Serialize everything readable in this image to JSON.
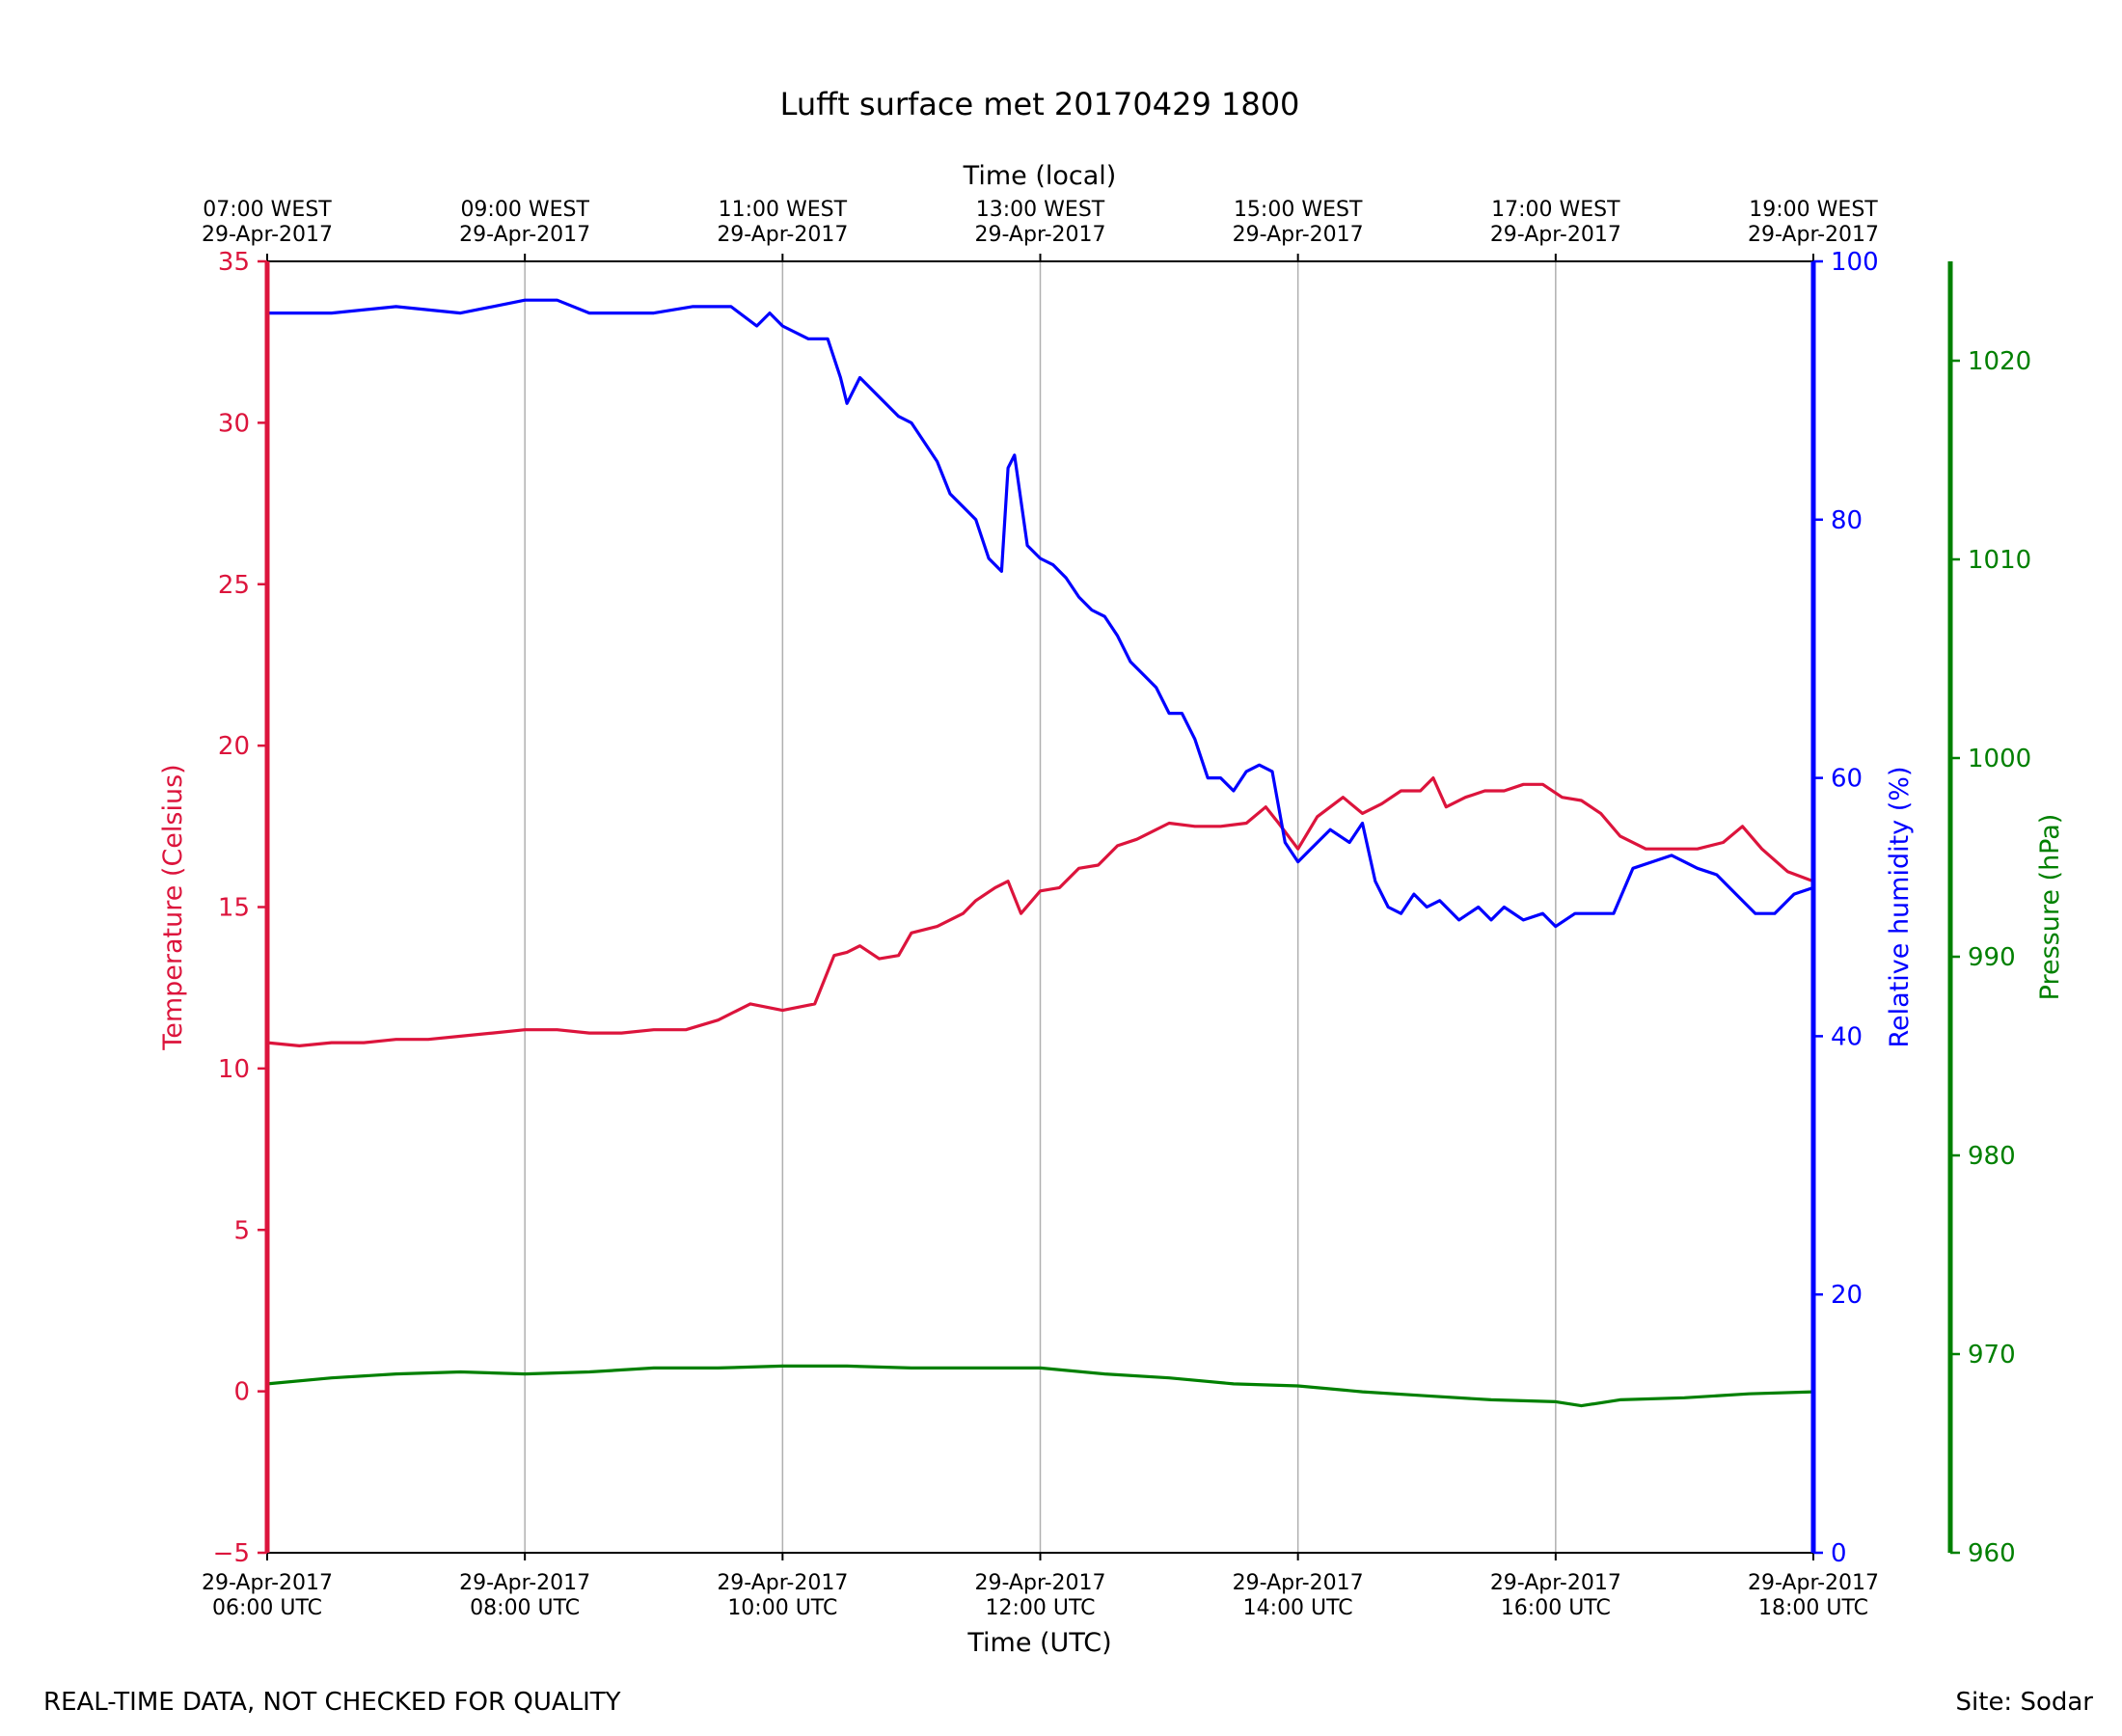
{
  "footer": {
    "disclaimer": "REAL-TIME DATA, NOT CHECKED FOR QUALITY",
    "site": "Site: Sodar"
  },
  "chart_data": {
    "type": "line",
    "title": "Lufft surface met 20170429 1800",
    "xlabel": "Time (UTC)",
    "x2label": "Time (local)",
    "xlim": [
      6,
      18
    ],
    "xticks": [
      6,
      8,
      10,
      12,
      14,
      16,
      18
    ],
    "xtick_labels": [
      [
        "29-Apr-2017",
        "06:00 UTC"
      ],
      [
        "29-Apr-2017",
        "08:00 UTC"
      ],
      [
        "29-Apr-2017",
        "10:00 UTC"
      ],
      [
        "29-Apr-2017",
        "12:00 UTC"
      ],
      [
        "29-Apr-2017",
        "14:00 UTC"
      ],
      [
        "29-Apr-2017",
        "16:00 UTC"
      ],
      [
        "29-Apr-2017",
        "18:00 UTC"
      ]
    ],
    "x2tick_labels": [
      [
        "07:00 WEST",
        "29-Apr-2017"
      ],
      [
        "09:00 WEST",
        "29-Apr-2017"
      ],
      [
        "11:00 WEST",
        "29-Apr-2017"
      ],
      [
        "13:00 WEST",
        "29-Apr-2017"
      ],
      [
        "15:00 WEST",
        "29-Apr-2017"
      ],
      [
        "17:00 WEST",
        "29-Apr-2017"
      ],
      [
        "19:00 WEST",
        "29-Apr-2017"
      ]
    ],
    "grid": "x",
    "axes": [
      {
        "id": "temp",
        "label": "Temperature (Celsius)",
        "ylim": [
          -5,
          35
        ],
        "ticks": [
          -5,
          0,
          5,
          10,
          15,
          20,
          25,
          30,
          35
        ],
        "tick_labels": [
          "−5",
          "0",
          "5",
          "10",
          "15",
          "20",
          "25",
          "30",
          "35"
        ],
        "color": "#dc143c",
        "side": "left"
      },
      {
        "id": "rh",
        "label": "Relative humidity (%)",
        "ylim": [
          0,
          100
        ],
        "ticks": [
          0,
          20,
          40,
          60,
          80,
          100
        ],
        "tick_labels": [
          "0",
          "20",
          "40",
          "60",
          "80",
          "100"
        ],
        "color": "#0000ff",
        "side": "right"
      },
      {
        "id": "pres",
        "label": "Pressure (hPa)",
        "ylim": [
          960,
          1025
        ],
        "ticks": [
          960,
          970,
          980,
          990,
          1000,
          1010,
          1020
        ],
        "tick_labels": [
          "960",
          "970",
          "980",
          "990",
          "1000",
          "1010",
          "1020"
        ],
        "color": "#008000",
        "side": "right-outer"
      }
    ],
    "series": [
      {
        "axis": "temp",
        "color": "#dc143c",
        "x": [
          6.0,
          6.25,
          6.5,
          6.75,
          7.0,
          7.25,
          7.5,
          7.75,
          8.0,
          8.25,
          8.5,
          8.75,
          9.0,
          9.25,
          9.5,
          9.75,
          10.0,
          10.25,
          10.4,
          10.5,
          10.6,
          10.75,
          10.9,
          11.0,
          11.2,
          11.4,
          11.5,
          11.65,
          11.75,
          11.85,
          12.0,
          12.15,
          12.3,
          12.45,
          12.6,
          12.75,
          12.9,
          13.0,
          13.2,
          13.4,
          13.6,
          13.75,
          13.85,
          14.0,
          14.15,
          14.35,
          14.5,
          14.65,
          14.8,
          14.95,
          15.05,
          15.15,
          15.3,
          15.45,
          15.6,
          15.75,
          15.9,
          16.05,
          16.2,
          16.35,
          16.5,
          16.7,
          16.9,
          17.1,
          17.3,
          17.45,
          17.6,
          17.8,
          18.0
        ],
        "y": [
          10.8,
          10.7,
          10.8,
          10.8,
          10.9,
          10.9,
          11.0,
          11.1,
          11.2,
          11.2,
          11.1,
          11.1,
          11.2,
          11.2,
          11.5,
          12.0,
          11.8,
          12.0,
          13.5,
          13.6,
          13.8,
          13.4,
          13.5,
          14.2,
          14.4,
          14.8,
          15.2,
          15.6,
          15.8,
          14.8,
          15.5,
          15.6,
          16.2,
          16.3,
          16.9,
          17.1,
          17.4,
          17.6,
          17.5,
          17.5,
          17.6,
          18.1,
          17.6,
          16.8,
          17.8,
          18.4,
          17.9,
          18.2,
          18.6,
          18.6,
          19.0,
          18.1,
          18.4,
          18.6,
          18.6,
          18.8,
          18.8,
          18.4,
          18.3,
          17.9,
          17.2,
          16.8,
          16.8,
          16.8,
          17.0,
          17.5,
          16.8,
          16.1,
          15.8
        ]
      },
      {
        "axis": "rh",
        "color": "#0000ff",
        "x": [
          6.0,
          6.5,
          7.0,
          7.5,
          8.0,
          8.25,
          8.5,
          9.0,
          9.3,
          9.6,
          9.8,
          9.9,
          10.0,
          10.2,
          10.35,
          10.45,
          10.5,
          10.6,
          10.7,
          10.9,
          11.0,
          11.1,
          11.2,
          11.3,
          11.4,
          11.5,
          11.6,
          11.7,
          11.75,
          11.8,
          11.9,
          12.0,
          12.1,
          12.2,
          12.3,
          12.4,
          12.5,
          12.6,
          12.7,
          12.8,
          12.9,
          13.0,
          13.1,
          13.2,
          13.3,
          13.4,
          13.5,
          13.6,
          13.7,
          13.8,
          13.9,
          14.0,
          14.1,
          14.25,
          14.4,
          14.5,
          14.6,
          14.7,
          14.8,
          14.9,
          15.0,
          15.1,
          15.25,
          15.4,
          15.5,
          15.6,
          15.75,
          15.9,
          16.0,
          16.15,
          16.3,
          16.45,
          16.6,
          16.75,
          16.9,
          17.1,
          17.25,
          17.4,
          17.55,
          17.7,
          17.85,
          18.0
        ],
        "y": [
          96.0,
          96.0,
          96.5,
          96.0,
          97.0,
          97.0,
          96.0,
          96.0,
          96.5,
          96.5,
          95.0,
          96.0,
          95.0,
          94.0,
          94.0,
          91.0,
          89.0,
          91.0,
          90.0,
          88.0,
          87.5,
          86.0,
          84.5,
          82.0,
          81.0,
          80.0,
          77.0,
          76.0,
          84.0,
          85.0,
          78.0,
          77.0,
          76.5,
          75.5,
          74.0,
          73.0,
          72.5,
          71.0,
          69.0,
          68.0,
          67.0,
          65.0,
          65.0,
          63.0,
          60.0,
          60.0,
          59.0,
          60.5,
          61.0,
          60.5,
          55.0,
          53.5,
          54.5,
          56.0,
          55.0,
          56.5,
          52.0,
          50.0,
          49.5,
          51.0,
          50.0,
          50.5,
          49.0,
          50.0,
          49.0,
          50.0,
          49.0,
          49.5,
          48.5,
          49.5,
          49.5,
          49.5,
          53.0,
          53.5,
          54.0,
          53.0,
          52.5,
          51.0,
          49.5,
          49.5,
          51.0,
          51.5
        ]
      },
      {
        "axis": "pres",
        "color": "#008000",
        "x": [
          6.0,
          6.5,
          7.0,
          7.5,
          8.0,
          8.5,
          9.0,
          9.5,
          10.0,
          10.5,
          11.0,
          11.5,
          12.0,
          12.5,
          13.0,
          13.5,
          14.0,
          14.5,
          15.0,
          15.5,
          16.0,
          16.2,
          16.5,
          17.0,
          17.5,
          18.0
        ],
        "y": [
          968.5,
          968.8,
          969.0,
          969.1,
          969.0,
          969.1,
          969.3,
          969.3,
          969.4,
          969.4,
          969.3,
          969.3,
          969.3,
          969.0,
          968.8,
          968.5,
          968.4,
          968.1,
          967.9,
          967.7,
          967.6,
          967.4,
          967.7,
          967.8,
          968.0,
          968.1
        ]
      }
    ]
  }
}
